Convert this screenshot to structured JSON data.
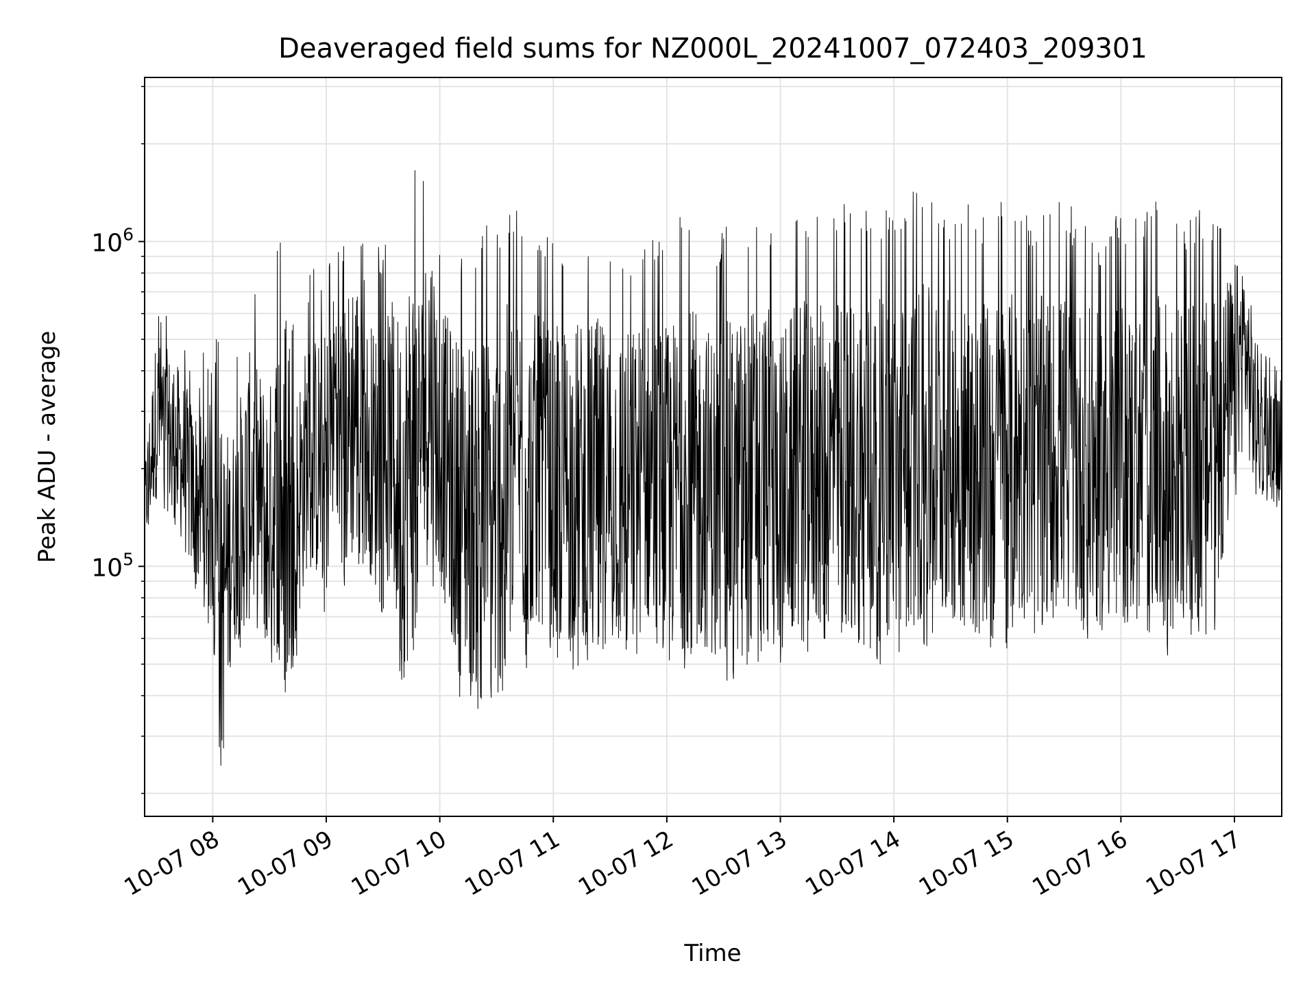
{
  "chart_data": {
    "type": "line",
    "title": "Deaveraged field sums for NZ000L_20241007_072403_209301",
    "xlabel": "Time",
    "ylabel": "Peak ADU - average",
    "xlim": [
      "2024-10-07 07:24",
      "2024-10-07 17:25"
    ],
    "ylim": [
      17000,
      3200000
    ],
    "y_scale": "log",
    "grid": true,
    "line_color": "#000000",
    "x_ticks": [
      {
        "t": "2024-10-07 08:00",
        "label": "10-07 08"
      },
      {
        "t": "2024-10-07 09:00",
        "label": "10-07 09"
      },
      {
        "t": "2024-10-07 10:00",
        "label": "10-07 10"
      },
      {
        "t": "2024-10-07 11:00",
        "label": "10-07 11"
      },
      {
        "t": "2024-10-07 12:00",
        "label": "10-07 12"
      },
      {
        "t": "2024-10-07 13:00",
        "label": "10-07 13"
      },
      {
        "t": "2024-10-07 14:00",
        "label": "10-07 14"
      },
      {
        "t": "2024-10-07 15:00",
        "label": "10-07 15"
      },
      {
        "t": "2024-10-07 16:00",
        "label": "10-07 16"
      },
      {
        "t": "2024-10-07 17:00",
        "label": "10-07 17"
      }
    ],
    "y_ticks": [
      {
        "value": 100000,
        "base": "10",
        "exp": "5"
      },
      {
        "value": 1000000,
        "base": "10",
        "exp": "6"
      }
    ],
    "series": [
      {
        "x": [
          "2024-10-07 07:24",
          "2024-10-07 07:30",
          "2024-10-07 07:40",
          "2024-10-07 07:50",
          "2024-10-07 08:00",
          "2024-10-07 08:05",
          "2024-10-07 08:10",
          "2024-10-07 08:20",
          "2024-10-07 08:30",
          "2024-10-07 08:35",
          "2024-10-07 08:40",
          "2024-10-07 08:50",
          "2024-10-07 09:00",
          "2024-10-07 09:05",
          "2024-10-07 09:10",
          "2024-10-07 09:15",
          "2024-10-07 09:20",
          "2024-10-07 09:30",
          "2024-10-07 09:35",
          "2024-10-07 09:40",
          "2024-10-07 09:45",
          "2024-10-07 09:50",
          "2024-10-07 09:55",
          "2024-10-07 10:00",
          "2024-10-07 10:10",
          "2024-10-07 10:20",
          "2024-10-07 10:30",
          "2024-10-07 10:40",
          "2024-10-07 10:45",
          "2024-10-07 10:50",
          "2024-10-07 11:00",
          "2024-10-07 11:10",
          "2024-10-07 11:20",
          "2024-10-07 11:30",
          "2024-10-07 11:40",
          "2024-10-07 11:50",
          "2024-10-07 12:00",
          "2024-10-07 12:10",
          "2024-10-07 12:20",
          "2024-10-07 12:30",
          "2024-10-07 12:40",
          "2024-10-07 12:50",
          "2024-10-07 13:00",
          "2024-10-07 13:10",
          "2024-10-07 13:20",
          "2024-10-07 13:30",
          "2024-10-07 13:40",
          "2024-10-07 13:50",
          "2024-10-07 14:00",
          "2024-10-07 14:10",
          "2024-10-07 14:20",
          "2024-10-07 14:30",
          "2024-10-07 14:40",
          "2024-10-07 14:50",
          "2024-10-07 15:00",
          "2024-10-07 15:10",
          "2024-10-07 15:20",
          "2024-10-07 15:30",
          "2024-10-07 15:40",
          "2024-10-07 15:50",
          "2024-10-07 16:00",
          "2024-10-07 16:10",
          "2024-10-07 16:20",
          "2024-10-07 16:30",
          "2024-10-07 16:40",
          "2024-10-07 16:50",
          "2024-10-07 17:00",
          "2024-10-07 17:05",
          "2024-10-07 17:10",
          "2024-10-07 17:15",
          "2024-10-07 17:25"
        ],
        "y_low": [
          105000,
          150000,
          130000,
          80000,
          60000,
          19500,
          50000,
          60000,
          50000,
          45000,
          35000,
          90000,
          70000,
          150000,
          80000,
          90000,
          100000,
          60000,
          90000,
          37000,
          45000,
          80000,
          90000,
          80000,
          40000,
          35000,
          31000,
          70000,
          45000,
          60000,
          50000,
          48000,
          50000,
          50000,
          50000,
          55000,
          45000,
          48000,
          48000,
          42000,
          45000,
          50000,
          50000,
          50000,
          55000,
          55000,
          50000,
          50000,
          50000,
          55000,
          55000,
          60000,
          55000,
          55000,
          55000,
          60000,
          60000,
          60000,
          55000,
          55000,
          55000,
          55000,
          48000,
          60000,
          60000,
          60000,
          150000,
          250000,
          160000,
          150000,
          150000
        ],
        "y_high": [
          250000,
          700000,
          600000,
          450000,
          500000,
          550000,
          400000,
          800000,
          600000,
          1200000,
          500000,
          800000,
          900000,
          1200000,
          1100000,
          1800000,
          900000,
          1000000,
          1100000,
          1200000,
          2200000,
          1300000,
          2500000,
          1100000,
          1000000,
          1100000,
          1200000,
          1300000,
          1200000,
          1100000,
          1000000,
          1100000,
          1100000,
          1100000,
          1000000,
          1100000,
          1050000,
          1300000,
          1050000,
          1100000,
          1200000,
          1350000,
          1000000,
          1300000,
          1200000,
          1300000,
          1400000,
          1350000,
          1200000,
          1500000,
          1400000,
          1300000,
          1300000,
          1250000,
          1400000,
          1200000,
          1300000,
          1350000,
          1200000,
          1100000,
          1300000,
          1200000,
          1350000,
          1200000,
          1300000,
          1200000,
          1350000,
          1300000,
          800000,
          500000,
          400000
        ]
      }
    ]
  }
}
